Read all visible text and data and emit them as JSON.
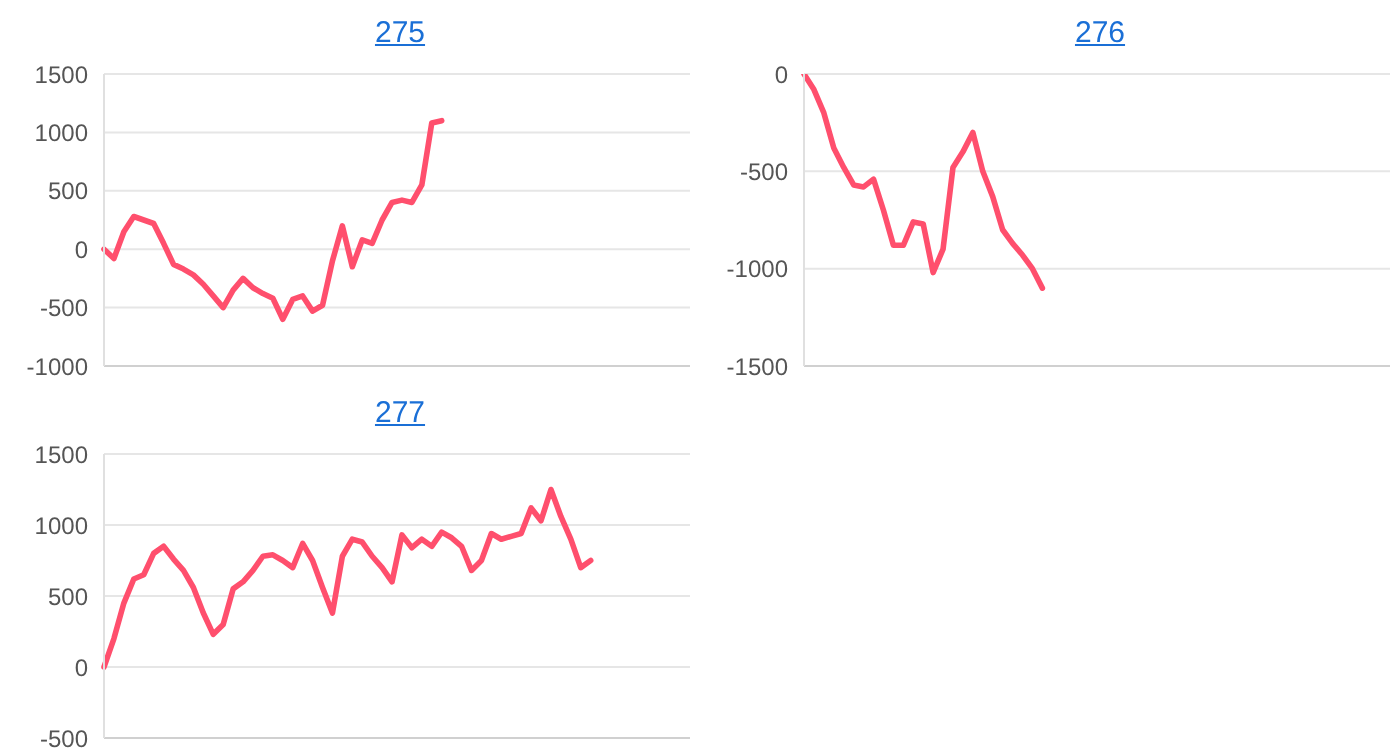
{
  "chart_data": [
    {
      "type": "line",
      "title": "275",
      "categories": [
        null,
        null,
        null,
        null,
        null,
        null,
        null,
        null,
        null,
        null,
        null,
        null,
        null,
        null,
        null,
        null,
        null,
        null,
        null,
        null,
        null,
        null,
        null,
        null,
        null,
        null,
        null,
        null,
        null,
        null,
        null,
        null,
        null,
        null,
        null,
        null,
        null,
        null,
        null,
        null,
        null,
        null,
        null,
        null,
        null,
        null,
        null,
        null,
        null,
        null,
        null,
        null,
        null,
        null,
        null,
        null,
        null,
        null,
        null,
        null
      ],
      "series": [
        {
          "color": "#ff4f6d",
          "values": [
            0,
            -80,
            150,
            280,
            250,
            220,
            50,
            -130,
            -170,
            -220,
            -300,
            -400,
            -500,
            -350,
            -250,
            -330,
            -380,
            -420,
            -600,
            -430,
            -400,
            -530,
            -480,
            -100,
            200,
            -150,
            80,
            50,
            250,
            400,
            420,
            400,
            550,
            1080,
            1100,
            null,
            null,
            null,
            null,
            null,
            null,
            null,
            null,
            null,
            null,
            null,
            null,
            null,
            null,
            null,
            null,
            null,
            null,
            null,
            null,
            null,
            null,
            null,
            null,
            null
          ]
        }
      ],
      "ylim": [
        -1000,
        1500
      ],
      "yticks": [
        -1000,
        -500,
        0,
        500,
        1000,
        1500
      ],
      "grid": "y",
      "tick_labels": "y",
      "marker": "none",
      "line_style": "solid",
      "legend": false
    },
    {
      "type": "line",
      "title": "276",
      "categories": [
        null,
        null,
        null,
        null,
        null,
        null,
        null,
        null,
        null,
        null,
        null,
        null,
        null,
        null,
        null,
        null,
        null,
        null,
        null,
        null,
        null,
        null,
        null,
        null,
        null,
        null,
        null,
        null,
        null,
        null,
        null,
        null,
        null,
        null,
        null,
        null,
        null,
        null,
        null,
        null,
        null,
        null,
        null,
        null,
        null,
        null,
        null,
        null,
        null,
        null,
        null,
        null,
        null,
        null,
        null,
        null,
        null,
        null,
        null,
        null
      ],
      "series": [
        {
          "color": "#ff4f6d",
          "values": [
            0,
            -80,
            -200,
            -380,
            -480,
            -570,
            -580,
            -540,
            -700,
            -880,
            -880,
            -760,
            -770,
            -1020,
            -900,
            -480,
            -400,
            -300,
            -500,
            -630,
            -800,
            -870,
            -930,
            -1000,
            -1100,
            null,
            null,
            null,
            null,
            null,
            null,
            null,
            null,
            null,
            null,
            null,
            null,
            null,
            null,
            null,
            null,
            null,
            null,
            null,
            null,
            null,
            null,
            null,
            null,
            null,
            null,
            null,
            null,
            null,
            null,
            null,
            null,
            null,
            null,
            null
          ]
        }
      ],
      "ylim": [
        -1500,
        0
      ],
      "yticks": [
        -1500,
        -1000,
        -500,
        0
      ],
      "grid": "y",
      "tick_labels": "y",
      "marker": "none",
      "line_style": "solid",
      "legend": false
    },
    {
      "type": "line",
      "title": "277",
      "categories": [
        null,
        null,
        null,
        null,
        null,
        null,
        null,
        null,
        null,
        null,
        null,
        null,
        null,
        null,
        null,
        null,
        null,
        null,
        null,
        null,
        null,
        null,
        null,
        null,
        null,
        null,
        null,
        null,
        null,
        null,
        null,
        null,
        null,
        null,
        null,
        null,
        null,
        null,
        null,
        null,
        null,
        null,
        null,
        null,
        null,
        null,
        null,
        null,
        null,
        null,
        null,
        null,
        null,
        null,
        null,
        null,
        null,
        null,
        null,
        null
      ],
      "series": [
        {
          "color": "#ff4f6d",
          "values": [
            0,
            200,
            450,
            620,
            650,
            800,
            850,
            760,
            680,
            560,
            380,
            230,
            300,
            550,
            600,
            680,
            780,
            790,
            750,
            700,
            870,
            750,
            560,
            380,
            780,
            900,
            880,
            780,
            700,
            600,
            930,
            840,
            900,
            850,
            950,
            910,
            850,
            680,
            750,
            940,
            900,
            920,
            940,
            1120,
            1030,
            1250,
            1060,
            900,
            700,
            750,
            null,
            null,
            null,
            null,
            null,
            null,
            null,
            null,
            null,
            null
          ]
        }
      ],
      "ylim": [
        -500,
        1500
      ],
      "yticks": [
        -500,
        0,
        500,
        1000,
        1500
      ],
      "grid": "y",
      "tick_labels": "y",
      "marker": "none",
      "line_style": "solid",
      "legend": false
    }
  ]
}
